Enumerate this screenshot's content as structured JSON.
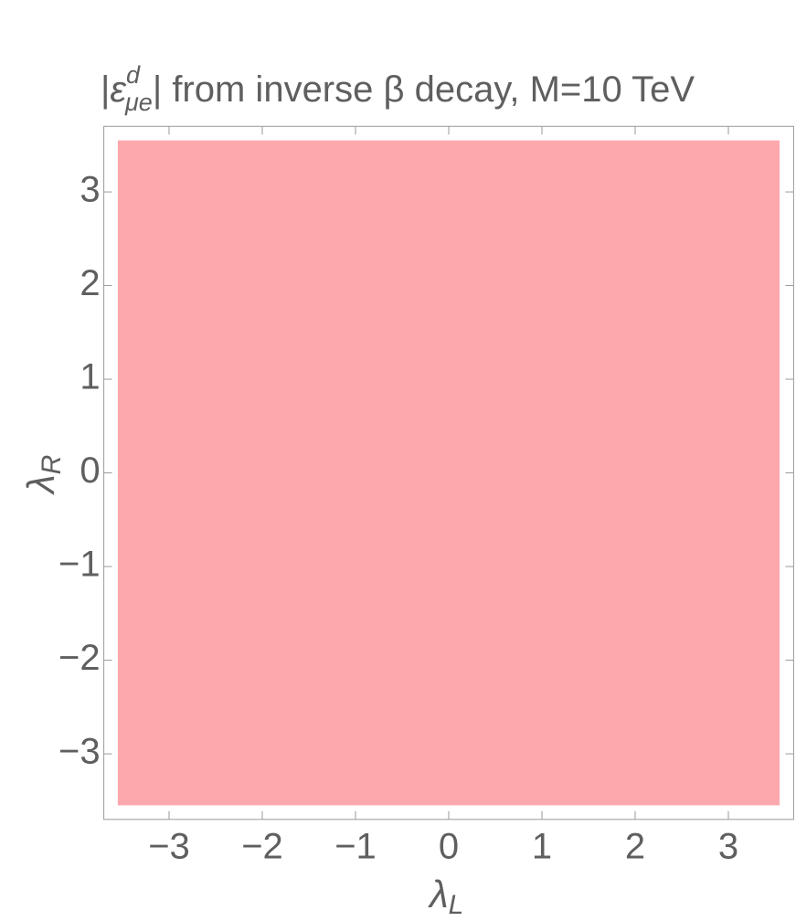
{
  "chart_data": {
    "type": "region",
    "title": {
      "open": "|",
      "symbol": "ε",
      "superscript": "d",
      "subscript": "μe",
      "close": "| from inverse β decay, M=10 TeV"
    },
    "xlabel": {
      "symbol": "λ",
      "subscript": "L"
    },
    "ylabel": {
      "symbol": "λ",
      "subscript": "R"
    },
    "xlim": [
      -3.7,
      3.7
    ],
    "ylim": [
      -3.7,
      3.7
    ],
    "xticks": [
      {
        "value": -3,
        "label": "−3"
      },
      {
        "value": -2,
        "label": "−2"
      },
      {
        "value": -1,
        "label": "−1"
      },
      0,
      1,
      2,
      3
    ],
    "yticks": [
      {
        "value": -3,
        "label": "−3"
      },
      {
        "value": -2,
        "label": "−2"
      },
      {
        "value": -1,
        "label": "−1"
      },
      0,
      1,
      2,
      3
    ],
    "region": {
      "x": [
        -3.55,
        3.55
      ],
      "y": [
        -3.55,
        3.55
      ],
      "color": "#fca8ad"
    },
    "frame_color": "#9a9a9a"
  }
}
